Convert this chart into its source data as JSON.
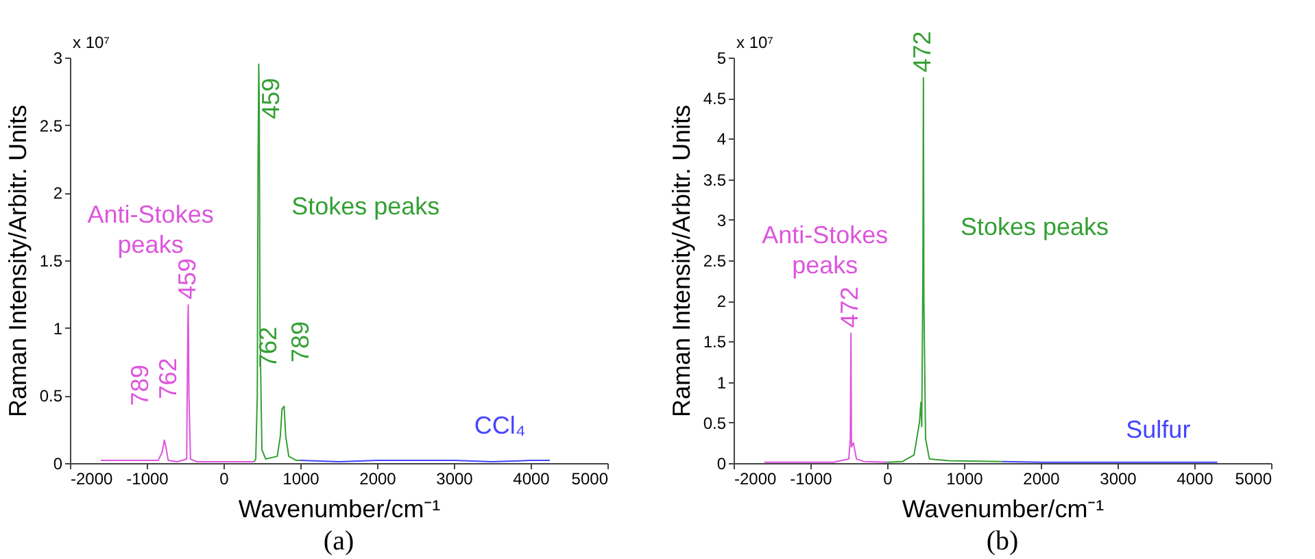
{
  "chart_data": [
    {
      "type": "line",
      "title": "(a)",
      "xlabel": "Wavenumber/cm⁻¹",
      "ylabel": "Raman Intensity/Arbitr. Units",
      "xlim": [
        -2000,
        5000
      ],
      "xticks": [
        -2000,
        -1000,
        0,
        1000,
        2000,
        3000,
        4000,
        5000
      ],
      "ylim": [
        0,
        3
      ],
      "yticks": [
        0,
        0.5,
        1,
        1.5,
        2,
        2.5,
        3
      ],
      "grid": false,
      "series": [
        {
          "name": "Anti-Stokes peaks",
          "color": "#dd55dd",
          "x": [
            -1600,
            -1000,
            -850,
            -800,
            -770,
            -750,
            -720,
            -600,
            -480,
            -465,
            -459,
            -450,
            -430,
            -350,
            0,
            400
          ],
          "values": [
            0.02,
            0.02,
            0.02,
            0.08,
            0.17,
            0.12,
            0.02,
            0.01,
            0.03,
            1.0,
            1.17,
            0.5,
            0.03,
            0.01,
            0.01,
            0.01
          ]
        },
        {
          "name": "Stokes peaks",
          "color": "#33a033",
          "x": [
            400,
            420,
            440,
            450,
            459,
            465,
            475,
            500,
            550,
            700,
            740,
            762,
            789,
            810,
            850,
            950,
            1000
          ],
          "values": [
            0.01,
            0.03,
            0.5,
            2.2,
            2.95,
            2.7,
            1.0,
            0.1,
            0.03,
            0.05,
            0.2,
            0.4,
            0.42,
            0.2,
            0.05,
            0.02,
            0.02
          ]
        },
        {
          "name": "CCl₄",
          "color": "#4444ff",
          "x": [
            1000,
            1500,
            2000,
            2500,
            3000,
            3500,
            4000,
            4250
          ],
          "values": [
            0.02,
            0.01,
            0.02,
            0.02,
            0.02,
            0.01,
            0.02,
            0.02
          ]
        }
      ],
      "annotations": [
        "x 10⁷",
        {
          "text": "459",
          "x": -459,
          "y": 1.17
        },
        {
          "text": "762",
          "x": -762,
          "y": 0.17
        },
        {
          "text": "789",
          "x": -789,
          "y": 0.12
        },
        {
          "text": "459",
          "x": 459,
          "y": 2.95
        },
        {
          "text": "762",
          "x": 762,
          "y": 0.4
        },
        {
          "text": "789",
          "x": 789,
          "y": 0.42
        }
      ]
    },
    {
      "type": "line",
      "title": "(b)",
      "xlabel": "Wavenumber/cm⁻¹",
      "ylabel": "Raman Intensity/Arbitr. Units",
      "xlim": [
        -2000,
        5000
      ],
      "xticks": [
        -2000,
        -1000,
        0,
        1000,
        2000,
        3000,
        4000,
        5000
      ],
      "ylim": [
        0,
        5
      ],
      "yticks": [
        0,
        0.5,
        1,
        1.5,
        2,
        2.5,
        3,
        3.5,
        4,
        4.5,
        5
      ],
      "grid": false,
      "series": [
        {
          "name": "Anti-Stokes peaks",
          "color": "#dd55dd",
          "x": [
            -1600,
            -700,
            -500,
            -480,
            -472,
            -465,
            -440,
            -400,
            -300,
            0
          ],
          "values": [
            0.01,
            0.01,
            0.05,
            0.3,
            1.6,
            0.2,
            0.25,
            0.05,
            0.02,
            0.01
          ]
        },
        {
          "name": "Stokes peaks",
          "color": "#33a033",
          "x": [
            0,
            200,
            350,
            420,
            440,
            450,
            465,
            472,
            478,
            500,
            550,
            800,
            1500
          ],
          "values": [
            0.01,
            0.02,
            0.1,
            0.5,
            0.75,
            0.45,
            2.35,
            4.75,
            2.0,
            0.3,
            0.05,
            0.03,
            0.02
          ]
        },
        {
          "name": "Sulfur",
          "color": "#4444ff",
          "x": [
            1500,
            2000,
            3000,
            4000,
            4300
          ],
          "values": [
            0.02,
            0.01,
            0.01,
            0.01,
            0.01
          ]
        }
      ],
      "annotations": [
        "x 10⁷",
        {
          "text": "472",
          "x": -472,
          "y": 1.6
        },
        {
          "text": "472",
          "x": 472,
          "y": 4.75
        }
      ]
    }
  ]
}
